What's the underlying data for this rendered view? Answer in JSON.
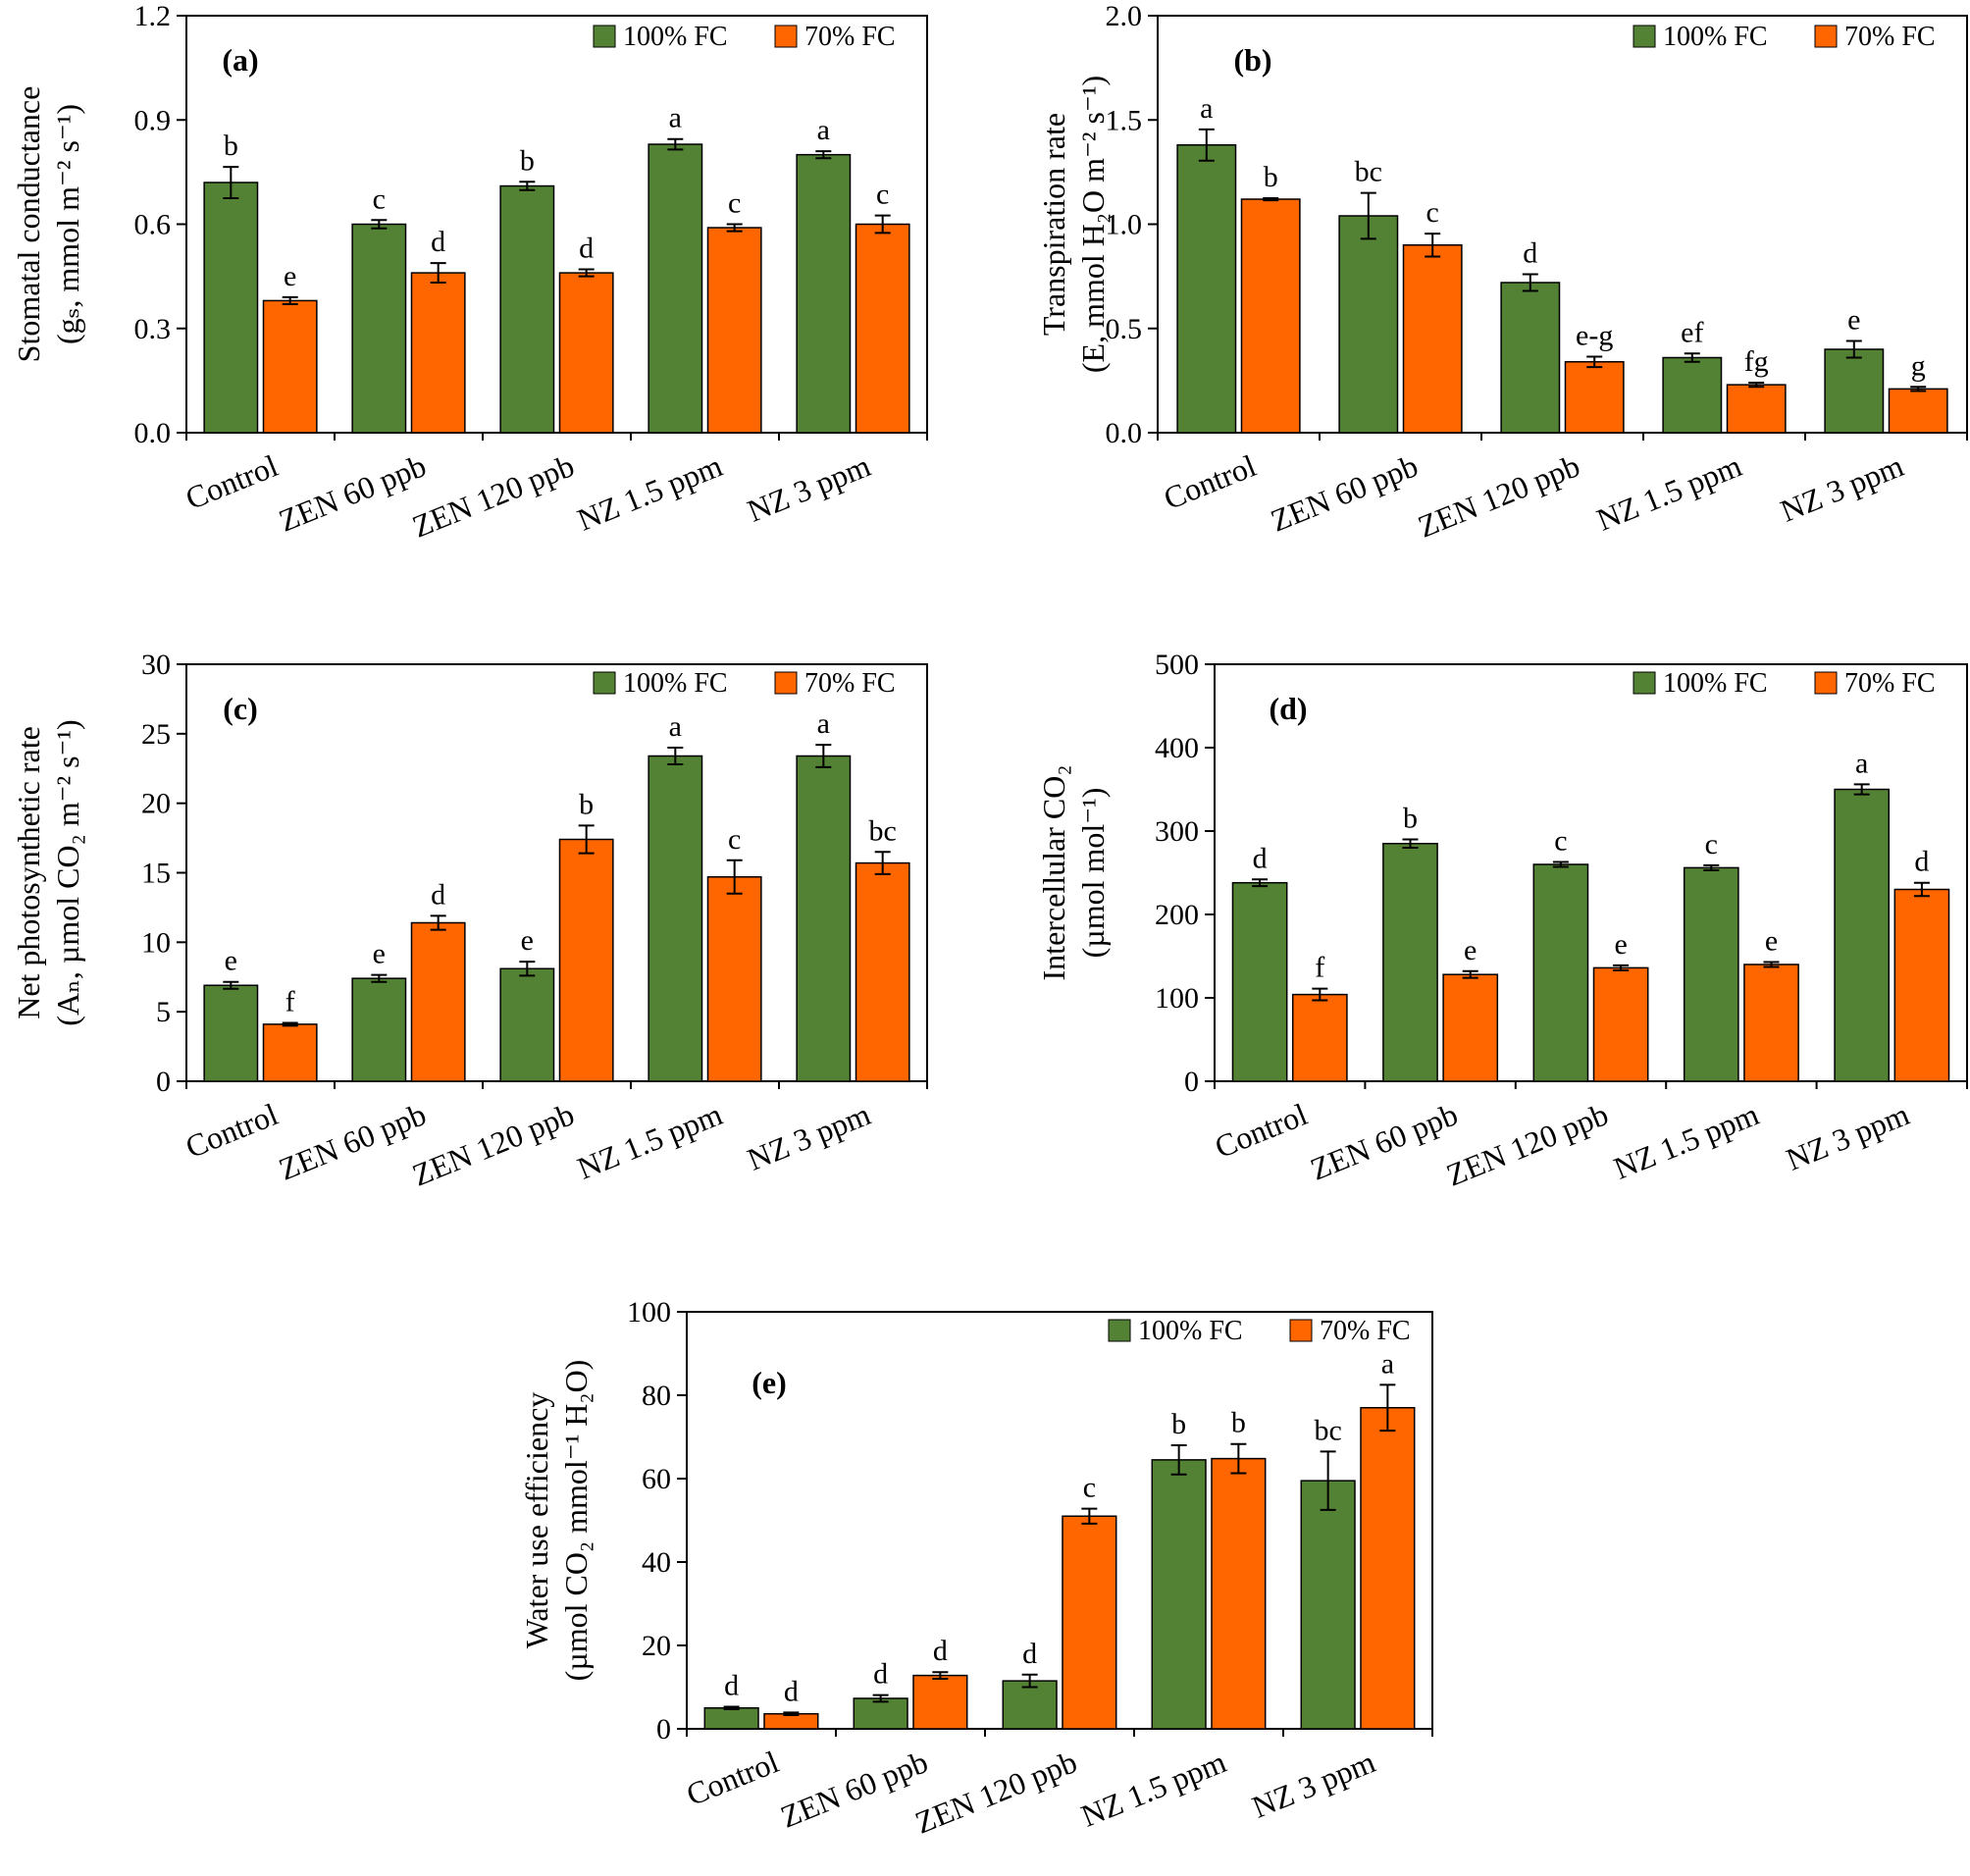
{
  "colors": {
    "fc100": "#548235",
    "fc70": "#ff6600",
    "axis": "#000000"
  },
  "chart_data": [
    {
      "id": "a",
      "type": "bar",
      "panel_label": "(a)",
      "ylabel": [
        "Stomatal conductance",
        "(gₛ, mmol m⁻² s⁻¹)"
      ],
      "ylim": [
        0,
        1.2
      ],
      "yticks": [
        "0.0",
        "0.3",
        "0.6",
        "0.9",
        "1.2"
      ],
      "categories": [
        "Control",
        "ZEN 60 ppb",
        "ZEN 120 ppb",
        "NZ 1.5 ppm",
        "NZ 3 ppm"
      ],
      "legend": [
        "100% FC",
        "70% FC"
      ],
      "series": [
        {
          "name": "100% FC",
          "values": [
            0.72,
            0.6,
            0.71,
            0.83,
            0.8
          ],
          "errors": [
            0.045,
            0.012,
            0.012,
            0.015,
            0.01
          ],
          "labels": [
            "b",
            "c",
            "b",
            "a",
            "a"
          ]
        },
        {
          "name": "70% FC",
          "values": [
            0.38,
            0.46,
            0.46,
            0.59,
            0.6
          ],
          "errors": [
            0.01,
            0.028,
            0.01,
            0.01,
            0.025
          ],
          "labels": [
            "e",
            "d",
            "d",
            "c",
            "c"
          ]
        }
      ]
    },
    {
      "id": "b",
      "type": "bar",
      "panel_label": "(b)",
      "ylabel": [
        "Transpiration rate",
        "(E, mmol H₂O m⁻² s⁻¹)"
      ],
      "ylim": [
        0,
        2.0
      ],
      "yticks": [
        "0.0",
        "0.5",
        "1.0",
        "1.5",
        "2.0"
      ],
      "categories": [
        "Control",
        "ZEN 60 ppb",
        "ZEN 120 ppb",
        "NZ 1.5 ppm",
        "NZ 3 ppm"
      ],
      "legend": [
        "100% FC",
        "70% FC"
      ],
      "series": [
        {
          "name": "100% FC",
          "values": [
            1.38,
            1.04,
            0.72,
            0.36,
            0.4
          ],
          "errors": [
            0.075,
            0.11,
            0.04,
            0.02,
            0.04
          ],
          "labels": [
            "a",
            "bc",
            "d",
            "ef",
            "e"
          ]
        },
        {
          "name": "70% FC",
          "values": [
            1.12,
            0.9,
            0.34,
            0.23,
            0.21
          ],
          "errors": [
            0.005,
            0.055,
            0.025,
            0.01,
            0.01
          ],
          "labels": [
            "b",
            "c",
            "e-g",
            "fg",
            "g"
          ]
        }
      ]
    },
    {
      "id": "c",
      "type": "bar",
      "panel_label": "(c)",
      "ylabel": [
        "Net photosynthetic rate",
        "(Aₙ, µmol CO₂ m⁻² s⁻¹)"
      ],
      "ylim": [
        0,
        30
      ],
      "yticks": [
        "0",
        "5",
        "10",
        "15",
        "20",
        "25",
        "30"
      ],
      "categories": [
        "Control",
        "ZEN 60 ppb",
        "ZEN 120 ppb",
        "NZ 1.5 ppm",
        "NZ 3 ppm"
      ],
      "legend": [
        "100% FC",
        "70% FC"
      ],
      "series": [
        {
          "name": "100% FC",
          "values": [
            6.9,
            7.4,
            8.1,
            23.4,
            23.4
          ],
          "errors": [
            0.25,
            0.25,
            0.5,
            0.6,
            0.8
          ],
          "labels": [
            "e",
            "e",
            "e",
            "a",
            "a"
          ]
        },
        {
          "name": "70% FC",
          "values": [
            4.1,
            11.4,
            17.4,
            14.7,
            15.7
          ],
          "errors": [
            0.1,
            0.5,
            1.0,
            1.2,
            0.8
          ],
          "labels": [
            "f",
            "d",
            "b",
            "c",
            "bc"
          ]
        }
      ]
    },
    {
      "id": "d",
      "type": "bar",
      "panel_label": "(d)",
      "ylabel": [
        "Intercellular CO₂",
        "(µmol mol⁻¹)"
      ],
      "ylim": [
        0,
        500
      ],
      "yticks": [
        "0",
        "100",
        "200",
        "300",
        "400",
        "500"
      ],
      "categories": [
        "Control",
        "ZEN 60 ppb",
        "ZEN 120 ppb",
        "NZ 1.5 ppm",
        "NZ 3 ppm"
      ],
      "legend": [
        "100% FC",
        "70% FC"
      ],
      "series": [
        {
          "name": "100% FC",
          "values": [
            238,
            285,
            260,
            256,
            350
          ],
          "errors": [
            4,
            5,
            3,
            3,
            6
          ],
          "labels": [
            "d",
            "b",
            "c",
            "c",
            "a"
          ]
        },
        {
          "name": "70% FC",
          "values": [
            104,
            128,
            136,
            140,
            230
          ],
          "errors": [
            7,
            4,
            3,
            3,
            8
          ],
          "labels": [
            "f",
            "e",
            "e",
            "e",
            "d"
          ]
        }
      ]
    },
    {
      "id": "e",
      "type": "bar",
      "panel_label": "(e)",
      "ylabel": [
        "Water use efficiency",
        "(µmol CO₂ mmol⁻¹ H₂O)"
      ],
      "ylim": [
        0,
        100
      ],
      "yticks": [
        "0",
        "20",
        "40",
        "60",
        "80",
        "100"
      ],
      "categories": [
        "Control",
        "ZEN 60 ppb",
        "ZEN 120 ppb",
        "NZ 1.5 ppm",
        "NZ 3 ppm"
      ],
      "legend": [
        "100% FC",
        "70% FC"
      ],
      "series": [
        {
          "name": "100% FC",
          "values": [
            5.0,
            7.3,
            11.5,
            64.5,
            59.5
          ],
          "errors": [
            0.3,
            0.8,
            1.5,
            3.5,
            7.0
          ],
          "labels": [
            "d",
            "d",
            "d",
            "b",
            "bc"
          ]
        },
        {
          "name": "70% FC",
          "values": [
            3.6,
            12.8,
            51.0,
            64.8,
            77.0
          ],
          "errors": [
            0.3,
            0.8,
            1.8,
            3.5,
            5.5
          ],
          "labels": [
            "d",
            "d",
            "c",
            "b",
            "a"
          ]
        }
      ]
    }
  ]
}
